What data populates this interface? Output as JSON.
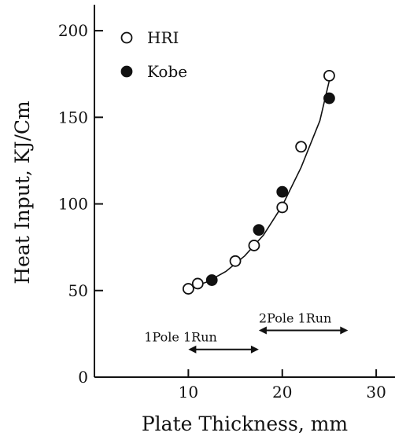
{
  "chart_data": {
    "type": "scatter",
    "xlabel": "Plate Thickness, mm",
    "ylabel": "Heat Input, KJ/Cm",
    "xlim": [
      0,
      32
    ],
    "ylim": [
      0,
      215
    ],
    "x_ticks": [
      10,
      20,
      30
    ],
    "y_ticks": [
      0,
      50,
      100,
      150,
      200
    ],
    "grid": false,
    "legend_position": "top-left",
    "series": [
      {
        "name": "HRI",
        "marker": "open-circle",
        "points": [
          {
            "x": 10,
            "y": 51
          },
          {
            "x": 11,
            "y": 54
          },
          {
            "x": 15,
            "y": 67
          },
          {
            "x": 17,
            "y": 76
          },
          {
            "x": 20,
            "y": 98
          },
          {
            "x": 22,
            "y": 133
          },
          {
            "x": 25,
            "y": 174
          }
        ]
      },
      {
        "name": "Kobe",
        "marker": "filled-circle",
        "points": [
          {
            "x": 12.5,
            "y": 56
          },
          {
            "x": 17.5,
            "y": 85
          },
          {
            "x": 20,
            "y": 107
          },
          {
            "x": 25,
            "y": 161
          }
        ]
      }
    ],
    "fit_curve": [
      {
        "x": 10,
        "y": 51
      },
      {
        "x": 12,
        "y": 55
      },
      {
        "x": 14,
        "y": 61
      },
      {
        "x": 16,
        "y": 70
      },
      {
        "x": 18,
        "y": 82
      },
      {
        "x": 20,
        "y": 99
      },
      {
        "x": 22,
        "y": 121
      },
      {
        "x": 24,
        "y": 148
      },
      {
        "x": 25,
        "y": 171
      }
    ],
    "annotations": [
      {
        "text": "1Pole  1Run",
        "from": 10,
        "to": 17.5,
        "y": 16
      },
      {
        "text": "2Pole  1Run",
        "from": 17.5,
        "to": 27,
        "y": 27
      }
    ]
  }
}
